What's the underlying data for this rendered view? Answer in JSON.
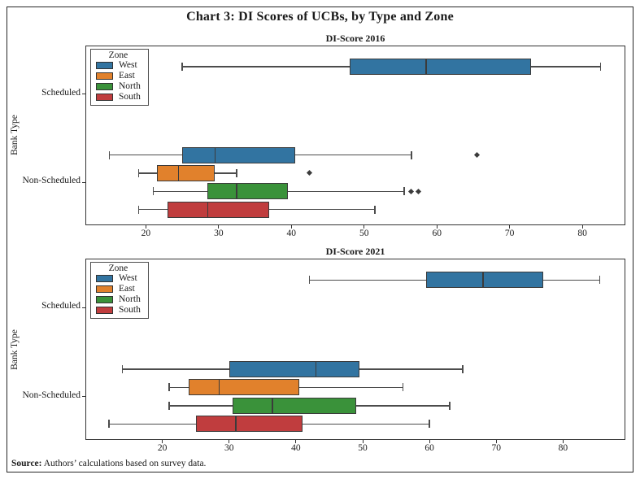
{
  "figure": {
    "title": "Chart 3: DI Scores of UCBs, by Type and Zone",
    "source_label": "Source:",
    "source_text": " Authors’ calculations based on survey data."
  },
  "axes": {
    "ylabel": "Bank Type",
    "bank_types": [
      "Scheduled",
      "Non-Scheduled"
    ]
  },
  "legend": {
    "title": "Zone",
    "position": "upper left",
    "items": [
      {
        "label": "West",
        "color": "#3274A1"
      },
      {
        "label": "East",
        "color": "#E1812C"
      },
      {
        "label": "North",
        "color": "#3A923A"
      },
      {
        "label": "South",
        "color": "#C03D3E"
      }
    ]
  },
  "chart_data": [
    {
      "type": "boxplot",
      "orientation": "horizontal",
      "title": "DI-Score 2016",
      "xlabel": "",
      "ylabel": "Bank Type",
      "xticks": [
        20,
        30,
        40,
        50,
        60,
        70,
        80
      ],
      "xlim": [
        11.8,
        85.8
      ],
      "grid": false,
      "groups": [
        {
          "bank_type": "Scheduled",
          "zone": "West",
          "whisker_low": 25,
          "q1": 48,
          "median": 58.5,
          "q3": 73,
          "whisker_high": 82.5,
          "outliers": []
        },
        {
          "bank_type": "Non-Scheduled",
          "zone": "West",
          "whisker_low": 15,
          "q1": 25,
          "median": 29.5,
          "q3": 40.5,
          "whisker_high": 56.5,
          "outliers": [
            65.5
          ]
        },
        {
          "bank_type": "Non-Scheduled",
          "zone": "East",
          "whisker_low": 19,
          "q1": 21.5,
          "median": 24.5,
          "q3": 29.5,
          "whisker_high": 32.5,
          "outliers": [
            42.5
          ]
        },
        {
          "bank_type": "Non-Scheduled",
          "zone": "North",
          "whisker_low": 21,
          "q1": 28.5,
          "median": 32.5,
          "q3": 39.5,
          "whisker_high": 55.5,
          "outliers": [
            56.5,
            57.5
          ]
        },
        {
          "bank_type": "Non-Scheduled",
          "zone": "South",
          "whisker_low": 19,
          "q1": 23,
          "median": 28.5,
          "q3": 37,
          "whisker_high": 51.5,
          "outliers": []
        }
      ]
    },
    {
      "type": "boxplot",
      "orientation": "horizontal",
      "title": "DI-Score 2021",
      "xlabel": "",
      "ylabel": "Bank Type",
      "xticks": [
        20,
        30,
        40,
        50,
        60,
        70,
        80
      ],
      "xlim": [
        8.6,
        89.2
      ],
      "grid": false,
      "groups": [
        {
          "bank_type": "Scheduled",
          "zone": "West",
          "whisker_low": 42,
          "q1": 59.5,
          "median": 68,
          "q3": 77,
          "whisker_high": 85.5,
          "outliers": []
        },
        {
          "bank_type": "Non-Scheduled",
          "zone": "West",
          "whisker_low": 14,
          "q1": 30,
          "median": 43,
          "q3": 49.5,
          "whisker_high": 65,
          "outliers": []
        },
        {
          "bank_type": "Non-Scheduled",
          "zone": "East",
          "whisker_low": 21,
          "q1": 24,
          "median": 28.5,
          "q3": 40.5,
          "whisker_high": 56,
          "outliers": []
        },
        {
          "bank_type": "Non-Scheduled",
          "zone": "North",
          "whisker_low": 21,
          "q1": 30.5,
          "median": 36.5,
          "q3": 49,
          "whisker_high": 63,
          "outliers": []
        },
        {
          "bank_type": "Non-Scheduled",
          "zone": "South",
          "whisker_low": 12,
          "q1": 25,
          "median": 31,
          "q3": 41,
          "whisker_high": 60,
          "outliers": []
        }
      ]
    }
  ]
}
